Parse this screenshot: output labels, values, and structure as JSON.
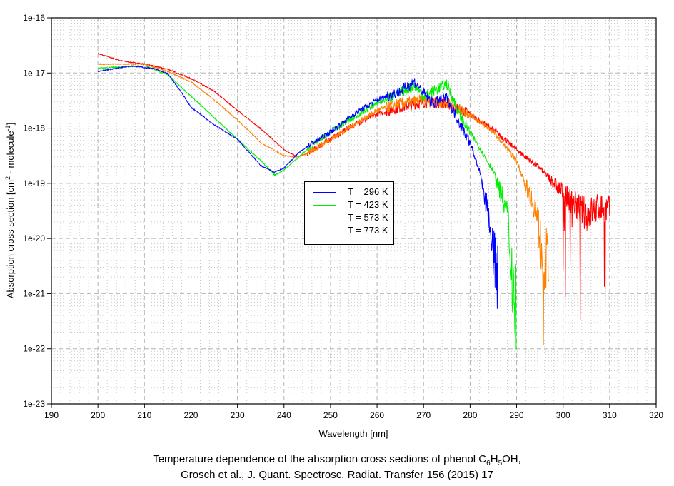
{
  "chart_data": {
    "type": "line",
    "title": "Temperature dependence of the absorption cross sections of phenol C6H5OH,",
    "subtitle": "Grosch et al., J. Quant. Spectrosc. Radiat. Transfer 156 (2015) 17",
    "caption_parts": {
      "pre": "Temperature dependence of the absorption cross sections of phenol C",
      "s1": "6",
      "mid": "H",
      "s2": "5",
      "post": "OH,"
    },
    "xlabel": "Wavelength [nm]",
    "ylabel_parts": {
      "pre": "Absorption cross section [cm",
      "sup1": "2",
      "mid": " · molecule",
      "sup2": "-1",
      "post": "]"
    },
    "xlim": [
      190,
      320
    ],
    "ylim": [
      1e-23,
      1e-16
    ],
    "yscale": "log",
    "xticks": [
      "190",
      "200",
      "210",
      "220",
      "230",
      "240",
      "250",
      "260",
      "270",
      "280",
      "290",
      "300",
      "310",
      "320"
    ],
    "yticks": [
      "1e-16",
      "1e-17",
      "1e-18",
      "1e-19",
      "1e-20",
      "1e-21",
      "1e-22",
      "1e-23"
    ],
    "grid": true,
    "legend_placement": "center",
    "series": [
      {
        "name": "T = 296 K",
        "color": "#0000ff",
        "x": [
          200,
          207,
          212,
          215,
          218,
          220,
          225,
          230,
          235,
          238,
          240,
          243,
          245,
          250,
          255,
          260,
          265,
          268,
          270,
          272,
          275,
          278,
          280,
          282,
          284,
          285,
          286
        ],
        "log10_y": [
          -16.97,
          -16.87,
          -16.92,
          -17.01,
          -17.36,
          -17.62,
          -17.94,
          -18.2,
          -18.68,
          -18.8,
          -18.72,
          -18.46,
          -18.33,
          -18.07,
          -17.75,
          -17.49,
          -17.33,
          -17.15,
          -17.36,
          -17.55,
          -17.45,
          -17.95,
          -18.26,
          -18.78,
          -19.56,
          -20.2,
          -20.9
        ]
      },
      {
        "name": "T = 423 K",
        "color": "#00ee00",
        "x": [
          200,
          210,
          215,
          220,
          225,
          230,
          235,
          238,
          240,
          245,
          250,
          260,
          265,
          268,
          270,
          275,
          278,
          280,
          285,
          288,
          289,
          290
        ],
        "log10_y": [
          -16.91,
          -16.87,
          -17.03,
          -17.42,
          -17.81,
          -18.2,
          -18.59,
          -18.85,
          -18.76,
          -18.39,
          -18.07,
          -17.55,
          -17.36,
          -17.23,
          -17.42,
          -17.2,
          -17.81,
          -18.07,
          -18.78,
          -19.56,
          -20.6,
          -21.3
        ]
      },
      {
        "name": "T = 573 K",
        "color": "#ff8000",
        "x": [
          200,
          210,
          215,
          220,
          225,
          230,
          235,
          240,
          243,
          245,
          250,
          260,
          265,
          270,
          275,
          280,
          285,
          290,
          292,
          294,
          295,
          296,
          297
        ],
        "log10_y": [
          -16.84,
          -16.84,
          -16.97,
          -17.16,
          -17.49,
          -17.85,
          -18.26,
          -18.5,
          -18.52,
          -18.46,
          -18.2,
          -17.68,
          -17.55,
          -17.49,
          -17.55,
          -17.75,
          -18.07,
          -18.59,
          -19.04,
          -19.43,
          -20.0,
          -20.4,
          -20.46
        ]
      },
      {
        "name": "T = 773 K",
        "color": "#ff0000",
        "x": [
          200,
          205,
          210,
          215,
          220,
          225,
          230,
          235,
          240,
          243,
          245,
          250,
          255,
          260,
          265,
          270,
          275,
          280,
          285,
          290,
          295,
          300,
          303,
          305,
          308,
          310
        ],
        "log10_y": [
          -16.65,
          -16.78,
          -16.84,
          -16.93,
          -17.1,
          -17.33,
          -17.68,
          -18.01,
          -18.39,
          -18.52,
          -18.46,
          -18.2,
          -17.94,
          -17.75,
          -17.62,
          -17.53,
          -17.55,
          -17.75,
          -18.03,
          -18.39,
          -18.72,
          -19.17,
          -19.43,
          -19.56,
          -19.43,
          -19.49
        ]
      }
    ]
  }
}
